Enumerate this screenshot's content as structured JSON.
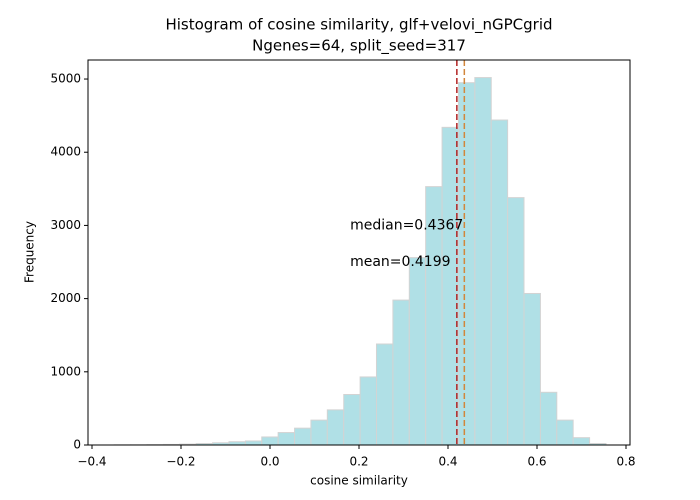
{
  "chart_data": {
    "type": "histogram",
    "title": "Histogram of cosine similarity, glf+velovi_nGPCgrid",
    "subtitle": "Ngenes=64, split_seed=317",
    "x_label": "cosine similarity",
    "y_label": "Frequency",
    "bins": [
      -0.35,
      -0.3132,
      -0.2763,
      -0.2395,
      -0.2027,
      -0.1658,
      -0.129,
      -0.0922,
      -0.0553,
      -0.0185,
      0.0183,
      0.0552,
      0.092,
      0.1288,
      0.1657,
      0.2025,
      0.2393,
      0.2762,
      0.313,
      0.3498,
      0.3867,
      0.4235,
      0.4603,
      0.4972,
      0.534,
      0.5708,
      0.6077,
      0.6445,
      0.6813,
      0.7182,
      0.755
    ],
    "counts": [
      2,
      3,
      5,
      8,
      12,
      20,
      30,
      45,
      55,
      110,
      170,
      230,
      340,
      480,
      690,
      930,
      1380,
      1980,
      2560,
      3530,
      4340,
      4950,
      5020,
      4440,
      3380,
      2070,
      720,
      340,
      100,
      20
    ],
    "color": "#b0e0e6",
    "edge_color": "#d3d3d3",
    "xlim": [
      -0.409,
      0.809
    ],
    "ylim": [
      0,
      5260
    ],
    "xticks": [
      {
        "value": -0.4,
        "label": "−0.4"
      },
      {
        "value": -0.2,
        "label": "−0.2"
      },
      {
        "value": 0,
        "label": "0.0"
      },
      0.2,
      0.4,
      0.6,
      0.8
    ],
    "yticks": [
      0,
      1000,
      2000,
      3000,
      4000,
      5000
    ],
    "vlines": [
      {
        "value": 0.4199,
        "color": "#b22222",
        "label": "mean=0.4199",
        "label_color": "#c8262b"
      },
      {
        "value": 0.4367,
        "color": "#d2863c",
        "label": "median=0.4367",
        "label_color": "#a0522d"
      }
    ]
  }
}
